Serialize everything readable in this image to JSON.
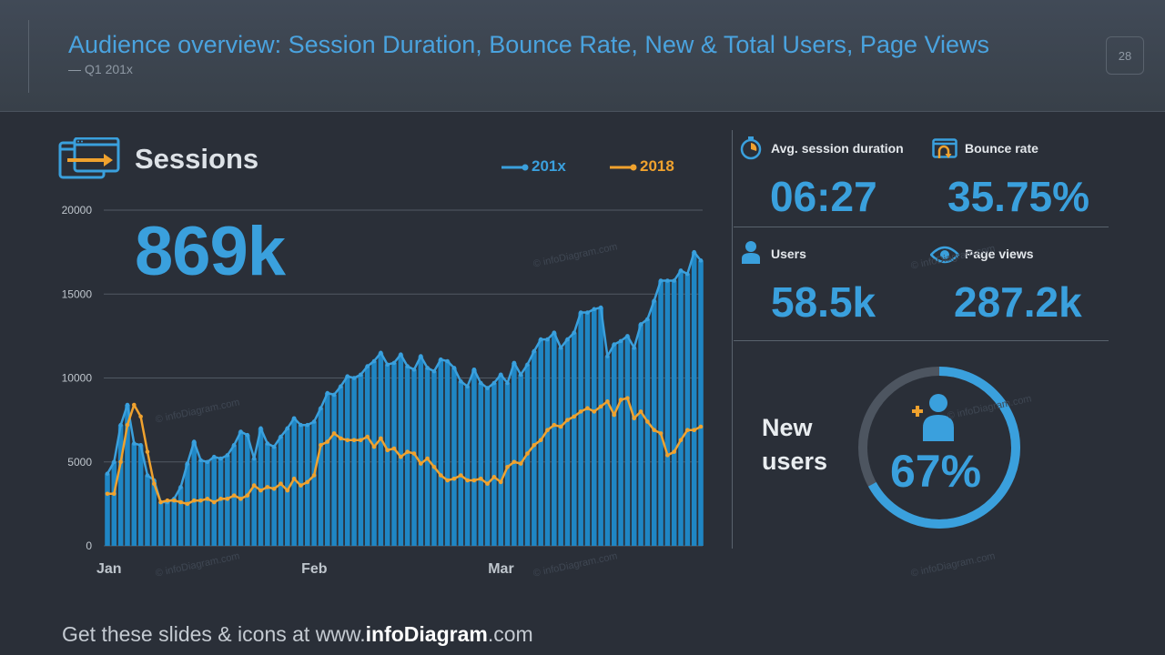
{
  "header": {
    "title": "Audience overview: Session Duration, Bounce Rate, New & Total Users, Page Views",
    "subtitle": "Q1 201x",
    "page_number": "28"
  },
  "sessions": {
    "title": "Sessions",
    "total": "869k"
  },
  "kpis": {
    "avg_session_duration": {
      "label": "Avg. session duration",
      "value": "06:27"
    },
    "bounce_rate": {
      "label": "Bounce rate",
      "value": "35.75%"
    },
    "users": {
      "label": "Users",
      "value": "58.5k"
    },
    "page_views": {
      "label": "Page views",
      "value": "287.2k"
    }
  },
  "new_users": {
    "label_line1": "New",
    "label_line2": "users",
    "percent_text": "67%",
    "fraction": 0.67
  },
  "footer": {
    "prefix": "Get these slides & icons at www.",
    "brand": "infoDiagram",
    "suffix": ".com"
  },
  "watermark": "© infoDiagram.com",
  "colors": {
    "accent_blue": "#3aa0dd",
    "series_2018": "#f0a22e",
    "bar_fill": "#1f86c4",
    "background": "#2a2f38"
  },
  "chart_data": {
    "type": "bar",
    "ylim": [
      0,
      20000
    ],
    "yticks": [
      0,
      5000,
      10000,
      15000,
      20000
    ],
    "x_tick_labels": [
      {
        "label": "Jan",
        "index": 0
      },
      {
        "label": "Feb",
        "index": 31
      },
      {
        "label": "Mar",
        "index": 59
      }
    ],
    "grid": true,
    "legend_position": "top-right",
    "series": [
      {
        "name": "201x",
        "color": "#3aa0dd",
        "style": "bars+line",
        "values": [
          4300,
          5000,
          7200,
          8400,
          6100,
          6000,
          4200,
          3900,
          2600,
          2600,
          2800,
          3500,
          4900,
          6200,
          5100,
          5000,
          5300,
          5200,
          5400,
          6000,
          6800,
          6600,
          5200,
          7000,
          6100,
          5900,
          6500,
          7000,
          7600,
          7200,
          7200,
          7400,
          8200,
          9100,
          9000,
          9500,
          10100,
          10000,
          10200,
          10700,
          11000,
          11500,
          10800,
          10900,
          11400,
          10700,
          10500,
          11300,
          10600,
          10400,
          11100,
          11000,
          10600,
          9800,
          9500,
          10500,
          9700,
          9400,
          9700,
          10200,
          9700,
          10900,
          10200,
          10800,
          11600,
          12300,
          12300,
          12700,
          11800,
          12300,
          12700,
          13900,
          13900,
          14100,
          14200,
          11300,
          12000,
          12200,
          12500,
          11800,
          13200,
          13500,
          14600,
          15800,
          15800,
          15800,
          16400,
          16200,
          17500,
          17000
        ]
      },
      {
        "name": "2018",
        "color": "#f0a22e",
        "style": "line",
        "values": [
          3100,
          3100,
          5000,
          7200,
          8400,
          7700,
          5600,
          3700,
          2600,
          2700,
          2700,
          2600,
          2500,
          2700,
          2700,
          2800,
          2600,
          2800,
          2800,
          3000,
          2800,
          3000,
          3600,
          3300,
          3500,
          3400,
          3700,
          3300,
          4000,
          3600,
          3800,
          4200,
          6000,
          6200,
          6700,
          6400,
          6300,
          6300,
          6300,
          6500,
          5900,
          6400,
          5700,
          5800,
          5300,
          5600,
          5500,
          4900,
          5200,
          4700,
          4200,
          3900,
          4000,
          4200,
          3900,
          3900,
          4000,
          3700,
          4100,
          3800,
          4700,
          5000,
          4900,
          5500,
          6000,
          6300,
          6900,
          7200,
          7100,
          7500,
          7700,
          8000,
          8200,
          8000,
          8300,
          8600,
          7800,
          8700,
          8800,
          7600,
          8000,
          7400,
          6900,
          6700,
          5400,
          5600,
          6300,
          6900,
          6900,
          7100
        ]
      }
    ]
  }
}
